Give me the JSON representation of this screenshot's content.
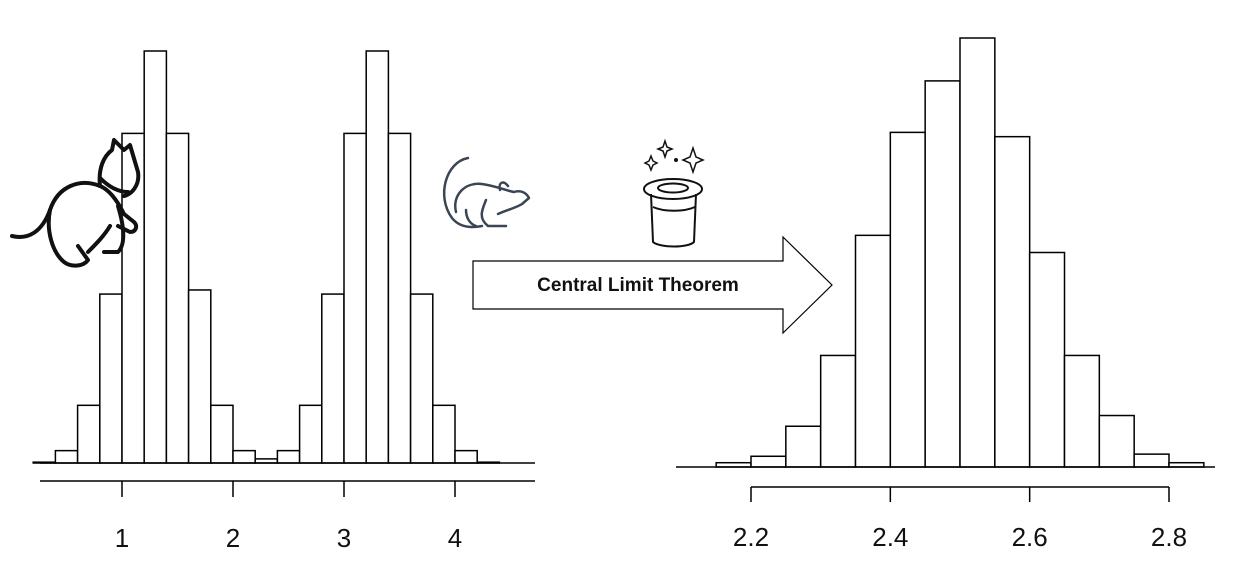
{
  "arrow": {
    "label": "Central Limit Theorem"
  },
  "icons": {
    "cat": "cat-icon",
    "mouse": "mouse-icon",
    "magic_hat": "magic-hat-icon",
    "sparkles": "sparkles-icon"
  },
  "colors": {
    "bars_fill": "#ffffff",
    "bars_stroke": "#000000",
    "mouse_stroke": "#3b4654"
  },
  "chart_data": [
    {
      "type": "bar",
      "title": "",
      "xlabel": "",
      "ylabel": "",
      "bin_width": 0.2,
      "bin_start": 0.2,
      "xlim": [
        0.2,
        4.8
      ],
      "x_ticks": [
        "1",
        "2",
        "3",
        "4"
      ],
      "ylim": [
        0,
        100
      ],
      "values": [
        0.2,
        3,
        14,
        41,
        80,
        100,
        80,
        42,
        14,
        3,
        1,
        3,
        14,
        41,
        80,
        100,
        80,
        41,
        14,
        3,
        0.2
      ]
    },
    {
      "type": "bar",
      "title": "",
      "xlabel": "",
      "ylabel": "",
      "bin_width": 0.05,
      "bin_start": 2.15,
      "xlim": [
        2.2,
        2.8
      ],
      "x_ticks": [
        "2.2",
        "2.4",
        "2.6",
        "2.8"
      ],
      "ylim": [
        0,
        100
      ],
      "values": [
        1,
        2.5,
        9.5,
        26,
        54,
        78,
        90,
        100,
        77,
        50,
        26,
        12,
        3,
        1
      ]
    }
  ]
}
